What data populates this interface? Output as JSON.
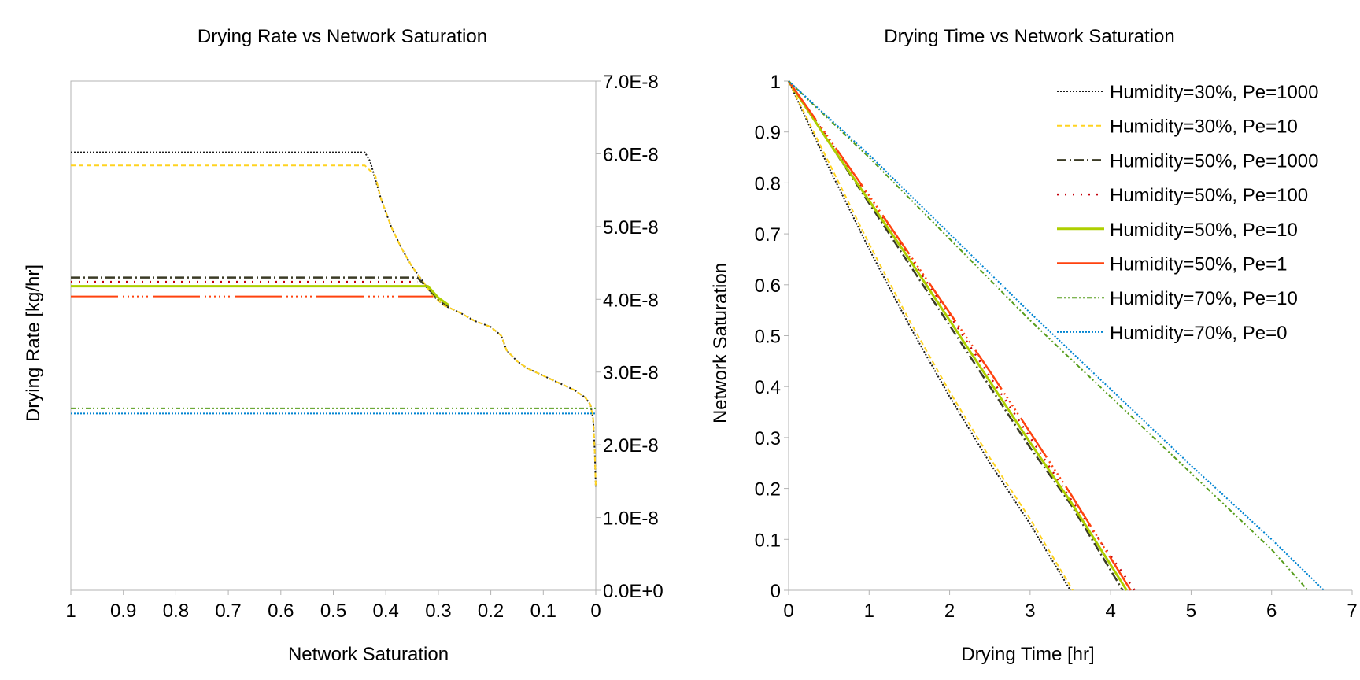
{
  "chart_data": [
    {
      "type": "line",
      "title": "Drying Rate vs Network Saturation",
      "xlabel": "Network Saturation",
      "ylabel": "Drying Rate [kg/hr]",
      "xlim": [
        1,
        0
      ],
      "ylim": [
        0,
        7e-08
      ],
      "x_reversed": true,
      "y_axis_side": "right",
      "grid": false,
      "legend": "none",
      "x_ticks": [
        "1",
        "0.9",
        "0.8",
        "0.7",
        "0.6",
        "0.5",
        "0.4",
        "0.3",
        "0.2",
        "0.1",
        "0"
      ],
      "y_ticks": [
        "0.0E+0",
        "1.0E-8",
        "2.0E-8",
        "3.0E-8",
        "4.0E-8",
        "5.0E-8",
        "6.0E-8",
        "7.0E-8"
      ],
      "series": [
        {
          "name": "Humidity=30%, Pe=1000",
          "color": "#1a1a1a",
          "dash": "2,2",
          "width": 2,
          "points": [
            [
              1,
              6.02e-08
            ],
            [
              0.44,
              6.02e-08
            ],
            [
              0.43,
              5.9e-08
            ],
            [
              0.41,
              5.4e-08
            ],
            [
              0.39,
              5e-08
            ],
            [
              0.37,
              4.7e-08
            ],
            [
              0.35,
              4.45e-08
            ],
            [
              0.33,
              4.25e-08
            ],
            [
              0.31,
              4.05e-08
            ],
            [
              0.29,
              3.92e-08
            ],
            [
              0.26,
              3.82e-08
            ],
            [
              0.23,
              3.7e-08
            ],
            [
              0.2,
              3.62e-08
            ],
            [
              0.18,
              3.5e-08
            ],
            [
              0.17,
              3.3e-08
            ],
            [
              0.15,
              3.15e-08
            ],
            [
              0.13,
              3.05e-08
            ],
            [
              0.1,
              2.95e-08
            ],
            [
              0.07,
              2.85e-08
            ],
            [
              0.04,
              2.75e-08
            ],
            [
              0.02,
              2.65e-08
            ],
            [
              0.01,
              2.55e-08
            ],
            [
              0.005,
              2.35e-08
            ],
            [
              0.002,
              1.9e-08
            ],
            [
              0,
              1.42e-08
            ]
          ]
        },
        {
          "name": "Humidity=30%, Pe=10",
          "color": "#ffd320",
          "dash": "6,4",
          "width": 2,
          "points": [
            [
              1,
              5.84e-08
            ],
            [
              0.44,
              5.84e-08
            ],
            [
              0.42,
              5.7e-08
            ],
            [
              0.41,
              5.4e-08
            ],
            [
              0.39,
              5e-08
            ],
            [
              0.37,
              4.7e-08
            ],
            [
              0.35,
              4.45e-08
            ],
            [
              0.33,
              4.25e-08
            ],
            [
              0.31,
              4.05e-08
            ],
            [
              0.29,
              3.92e-08
            ],
            [
              0.26,
              3.82e-08
            ],
            [
              0.23,
              3.7e-08
            ],
            [
              0.2,
              3.62e-08
            ],
            [
              0.18,
              3.5e-08
            ],
            [
              0.17,
              3.3e-08
            ],
            [
              0.15,
              3.15e-08
            ],
            [
              0.13,
              3.05e-08
            ],
            [
              0.1,
              2.95e-08
            ],
            [
              0.07,
              2.85e-08
            ],
            [
              0.04,
              2.75e-08
            ],
            [
              0.02,
              2.65e-08
            ],
            [
              0.01,
              2.55e-08
            ],
            [
              0.005,
              2.35e-08
            ],
            [
              0.002,
              1.9e-08
            ],
            [
              0,
              1.42e-08
            ]
          ]
        },
        {
          "name": "Humidity=50%, Pe=1000",
          "color": "#3b3b26",
          "dash": "12,4,2,4",
          "width": 2.5,
          "points": [
            [
              1,
              4.3e-08
            ],
            [
              0.34,
              4.3e-08
            ],
            [
              0.32,
              4.15e-08
            ],
            [
              0.3,
              4e-08
            ],
            [
              0.28,
              3.9e-08
            ]
          ]
        },
        {
          "name": "Humidity=50%, Pe=100",
          "color": "#c5000b",
          "dash": "2,8",
          "width": 2.5,
          "points": [
            [
              1,
              4.24e-08
            ],
            [
              0.34,
              4.24e-08
            ]
          ]
        },
        {
          "name": "Humidity=50%, Pe=10",
          "color": "#aecf00",
          "dash": "",
          "width": 3,
          "points": [
            [
              1,
              4.18e-08
            ],
            [
              0.32,
              4.18e-08
            ],
            [
              0.3,
              4.02e-08
            ],
            [
              0.28,
              3.92e-08
            ]
          ]
        },
        {
          "name": "Humidity=50%, Pe=1",
          "color": "#ff420e",
          "dash": "60,6,2,4,2,4,2,4,2,4,2,4,2,6",
          "width": 2,
          "points": [
            [
              1,
              4.04e-08
            ],
            [
              0.31,
              4.04e-08
            ]
          ]
        },
        {
          "name": "Humidity=70%, Pe=10",
          "color": "#579d1c",
          "dash": "6,3,2,3,2,3",
          "width": 2,
          "points": [
            [
              1,
              2.5e-08
            ],
            [
              0,
              2.5e-08
            ]
          ]
        },
        {
          "name": "Humidity=70%, Pe=0",
          "color": "#0084d1",
          "dash": "2,2",
          "width": 2,
          "points": [
            [
              1,
              2.43e-08
            ],
            [
              0,
              2.43e-08
            ]
          ]
        }
      ]
    },
    {
      "type": "line",
      "title": "Drying Time vs Network Saturation",
      "xlabel": "Drying Time [hr]",
      "ylabel": "Network Saturation",
      "xlim": [
        0,
        7
      ],
      "ylim": [
        0,
        1
      ],
      "grid": false,
      "legend": "top-right",
      "x_ticks": [
        "0",
        "1",
        "2",
        "3",
        "4",
        "5",
        "6",
        "7"
      ],
      "y_ticks": [
        "0",
        "0.1",
        "0.2",
        "0.3",
        "0.4",
        "0.5",
        "0.6",
        "0.7",
        "0.8",
        "0.9",
        "1"
      ],
      "series": [
        {
          "name": "Humidity=30%, Pe=1000",
          "color": "#1a1a1a",
          "dash": "2,2",
          "width": 2,
          "points": [
            [
              0,
              1
            ],
            [
              0.5,
              0.83
            ],
            [
              1,
              0.67
            ],
            [
              1.5,
              0.52
            ],
            [
              2,
              0.38
            ],
            [
              2.5,
              0.25
            ],
            [
              3,
              0.13
            ],
            [
              3.5,
              0
            ]
          ]
        },
        {
          "name": "Humidity=30%, Pe=10",
          "color": "#ffd320",
          "dash": "6,4",
          "width": 2,
          "points": [
            [
              0,
              1
            ],
            [
              0.5,
              0.84
            ],
            [
              1,
              0.68
            ],
            [
              1.5,
              0.53
            ],
            [
              2,
              0.39
            ],
            [
              2.5,
              0.26
            ],
            [
              3,
              0.14
            ],
            [
              3.53,
              0
            ]
          ]
        },
        {
          "name": "Humidity=50%, Pe=1000",
          "color": "#3b3b26",
          "dash": "12,4,2,4",
          "width": 2.5,
          "points": [
            [
              0,
              1
            ],
            [
              0.5,
              0.88
            ],
            [
              1,
              0.76
            ],
            [
              1.5,
              0.64
            ],
            [
              2,
              0.52
            ],
            [
              2.5,
              0.4
            ],
            [
              3,
              0.28
            ],
            [
              3.5,
              0.17
            ],
            [
              4.15,
              0
            ]
          ]
        },
        {
          "name": "Humidity=50%, Pe=100",
          "color": "#c5000b",
          "dash": "2,8",
          "width": 2.5,
          "points": [
            [
              0,
              1
            ],
            [
              0.5,
              0.885
            ],
            [
              1,
              0.77
            ],
            [
              1.5,
              0.655
            ],
            [
              2,
              0.54
            ],
            [
              2.5,
              0.42
            ],
            [
              3,
              0.3
            ],
            [
              3.5,
              0.18
            ],
            [
              4.3,
              0
            ]
          ]
        },
        {
          "name": "Humidity=50%, Pe=10",
          "color": "#aecf00",
          "dash": "",
          "width": 3,
          "points": [
            [
              0,
              1
            ],
            [
              0.5,
              0.88
            ],
            [
              1,
              0.765
            ],
            [
              1.5,
              0.65
            ],
            [
              2,
              0.53
            ],
            [
              2.5,
              0.41
            ],
            [
              3,
              0.29
            ],
            [
              3.5,
              0.175
            ],
            [
              4.2,
              0
            ]
          ]
        },
        {
          "name": "Humidity=50%, Pe=1",
          "color": "#ff420e",
          "dash": "60,6,2,4,2,4,2,4,2,4,2,4,2,6",
          "width": 2.5,
          "points": [
            [
              0,
              1
            ],
            [
              0.5,
              0.888
            ],
            [
              1,
              0.775
            ],
            [
              1.5,
              0.66
            ],
            [
              2,
              0.545
            ],
            [
              2.5,
              0.43
            ],
            [
              3,
              0.31
            ],
            [
              3.5,
              0.19
            ],
            [
              4.25,
              0
            ]
          ]
        },
        {
          "name": "Humidity=70%, Pe=10",
          "color": "#579d1c",
          "dash": "6,3,2,3,2,3",
          "width": 2,
          "points": [
            [
              0,
              1
            ],
            [
              1,
              0.85
            ],
            [
              2,
              0.69
            ],
            [
              3,
              0.53
            ],
            [
              4,
              0.38
            ],
            [
              5,
              0.23
            ],
            [
              6,
              0.08
            ],
            [
              6.45,
              0
            ]
          ]
        },
        {
          "name": "Humidity=70%, Pe=0",
          "color": "#0084d1",
          "dash": "2,2",
          "width": 2,
          "points": [
            [
              0,
              1
            ],
            [
              1,
              0.855
            ],
            [
              2,
              0.7
            ],
            [
              3,
              0.545
            ],
            [
              4,
              0.395
            ],
            [
              5,
              0.245
            ],
            [
              6,
              0.1
            ],
            [
              6.65,
              0
            ]
          ]
        }
      ]
    }
  ]
}
